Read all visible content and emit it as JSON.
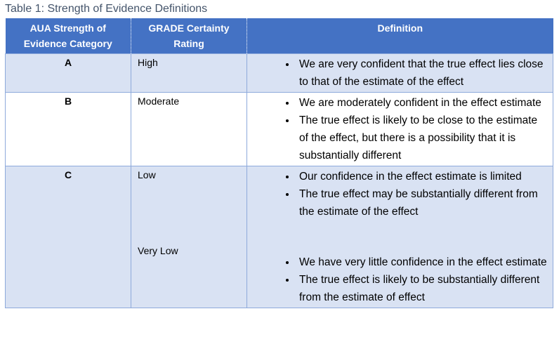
{
  "caption": "Table 1: Strength of Evidence Definitions",
  "table": {
    "header": [
      "AUA Strength of Evidence Category",
      "GRADE Certainty Rating",
      "Definition"
    ],
    "rows": [
      {
        "category": "A",
        "groups": [
          {
            "rating": "High",
            "bullets": [
              "We are very confident that the true effect lies close to that of the estimate of the effect"
            ]
          }
        ]
      },
      {
        "category": "B",
        "groups": [
          {
            "rating": "Moderate",
            "bullets": [
              "We are moderately confident in the effect estimate",
              "The true effect is likely to be close to the estimate of the effect, but there is a possibility that it is substantially different"
            ]
          }
        ]
      },
      {
        "category": "C",
        "groups": [
          {
            "rating": "Low",
            "bullets": [
              "Our confidence in the effect estimate is limited",
              "The true effect may be substantially different from the estimate of the effect"
            ]
          },
          {
            "rating": "Very Low",
            "bullets": [
              "We have very little confidence in the effect estimate",
              "The true effect is likely to be substantially different from the estimate of effect"
            ]
          }
        ]
      }
    ]
  }
}
